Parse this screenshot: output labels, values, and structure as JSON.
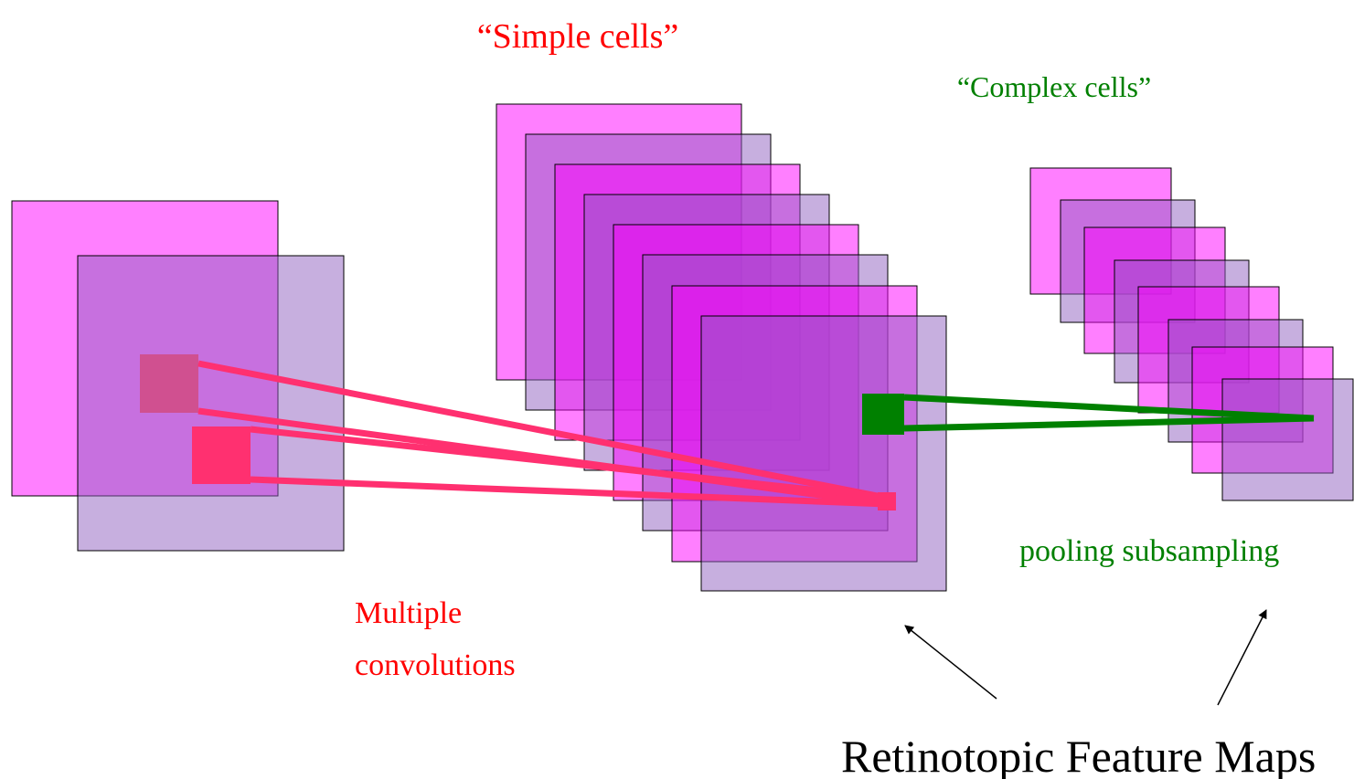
{
  "labels": {
    "simple_cells": "“Simple cells”",
    "complex_cells": "“Complex cells”",
    "convolutions": [
      "Multiple",
      "convolutions"
    ],
    "pooling": "pooling subsampling",
    "feature_maps": "Retinotopic Feature Maps"
  }
}
